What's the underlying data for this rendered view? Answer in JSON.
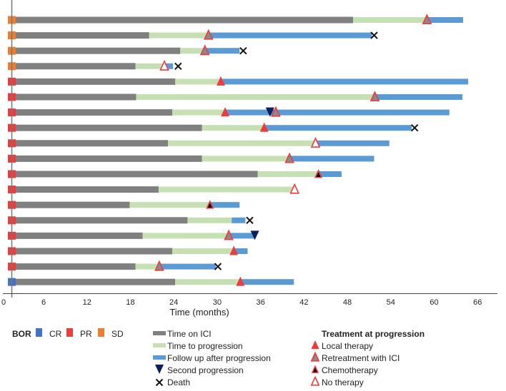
{
  "chart_data": {
    "type": "swimmer",
    "xlabel": "Time (months)",
    "xlim": [
      0,
      69
    ],
    "xticks": [
      0,
      6,
      12,
      18,
      24,
      30,
      36,
      42,
      48,
      54,
      60,
      66
    ],
    "bar_start": 1.6,
    "grid": false,
    "colors": {
      "time_on_ici": "#808080",
      "time_to_progression": "#c6e0b4",
      "follow_up": "#5b9bd5",
      "CR": "#4472c4",
      "PR": "#ee3b3b",
      "SD": "#ed7d31",
      "second_progression": "#0b1f5c",
      "death": "#111111",
      "triangle_red": "#ee3b3b",
      "triangle_gray": "#8a8a8a",
      "triangle_black": "#000000"
    },
    "patients": [
      {
        "bor": "SD",
        "ici_end": 48.8,
        "progression": 59.0,
        "fu_end": 64.0,
        "treatment": "retreatment"
      },
      {
        "bor": "SD",
        "ici_end": 20.6,
        "progression": 28.8,
        "fu_end": 51.4,
        "treatment": "retreatment",
        "death": 51.7
      },
      {
        "bor": "SD",
        "ici_end": 24.9,
        "progression": 28.3,
        "fu_end": 33.1,
        "treatment": "retreatment",
        "death": 33.6
      },
      {
        "bor": "SD",
        "ici_end": 18.7,
        "progression": 22.7,
        "fu_end": 23.9,
        "treatment": "none",
        "death": 24.6
      },
      {
        "bor": "PR",
        "ici_end": 24.2,
        "progression": 30.5,
        "fu_end": 64.7,
        "treatment": "local"
      },
      {
        "bor": "PR",
        "ici_end": 18.8,
        "progression": 51.8,
        "fu_end": 63.9,
        "treatment": "retreatment"
      },
      {
        "bor": "PR",
        "ici_end": 23.8,
        "progression": 31.1,
        "fu_end": 62.1,
        "treatment": "local",
        "second_progression": 37.3,
        "treatment2": {
          "type": "retreatment",
          "at": 38.1
        }
      },
      {
        "bor": "PR",
        "ici_end": 27.9,
        "progression": 36.5,
        "fu_end": 56.9,
        "treatment": "local",
        "death": 57.3
      },
      {
        "bor": "PR",
        "ici_end": 23.2,
        "progression": 43.6,
        "fu_end": 53.8,
        "treatment": "none"
      },
      {
        "bor": "PR",
        "ici_end": 27.9,
        "progression": 40.0,
        "fu_end": 51.7,
        "treatment": "retreatment"
      },
      {
        "bor": "PR",
        "ici_end": 35.6,
        "progression": 44.0,
        "fu_end": 47.2,
        "treatment": "chemo"
      },
      {
        "bor": "PR",
        "ici_end": 21.9,
        "progression": 40.7,
        "fu_end": 40.7,
        "treatment": "none"
      },
      {
        "bor": "PR",
        "ici_end": 17.9,
        "progression": 29.0,
        "fu_end": 33.1,
        "treatment": "chemo"
      },
      {
        "bor": "PR",
        "ici_end": 25.9,
        "progression": 32.0,
        "fu_end": 33.9,
        "treatment": null,
        "death": 34.5
      },
      {
        "bor": "PR",
        "ici_end": 19.7,
        "progression": 31.6,
        "fu_end": 35.2,
        "treatment": "retreatment",
        "second_progression": 35.2
      },
      {
        "bor": "PR",
        "ici_end": 23.8,
        "progression": 32.3,
        "fu_end": 34.2,
        "treatment": "local"
      },
      {
        "bor": "PR",
        "ici_end": 18.7,
        "progression": 22.0,
        "fu_end": 29.8,
        "treatment": "retreatment",
        "death": 30.1
      },
      {
        "bor": "CR",
        "ici_end": 24.2,
        "progression": 33.2,
        "fu_end": 40.6,
        "treatment": "local"
      }
    ],
    "legend": {
      "bor_title": "BOR",
      "bor_items": [
        {
          "key": "CR",
          "label": "CR"
        },
        {
          "key": "PR",
          "label": "PR"
        },
        {
          "key": "SD",
          "label": "SD"
        }
      ],
      "series_items": [
        {
          "key": "time_on_ici",
          "label": "Time on ICI",
          "kind": "bar"
        },
        {
          "key": "time_to_progression",
          "label": "Time to progression",
          "kind": "bar"
        },
        {
          "key": "follow_up",
          "label": "Follow up after progression",
          "kind": "bar"
        },
        {
          "key": "second_progression",
          "label": "Second progression",
          "kind": "down-triangle"
        },
        {
          "key": "death",
          "label": "Death",
          "kind": "cross"
        }
      ],
      "treatment_title": "Treatment at progression",
      "treatment_items": [
        {
          "key": "local",
          "label": "Local therapy"
        },
        {
          "key": "retreatment",
          "label": "Retreatment with ICI"
        },
        {
          "key": "chemo",
          "label": "Chemotherapy"
        },
        {
          "key": "none",
          "label": "No therapy"
        }
      ]
    }
  }
}
